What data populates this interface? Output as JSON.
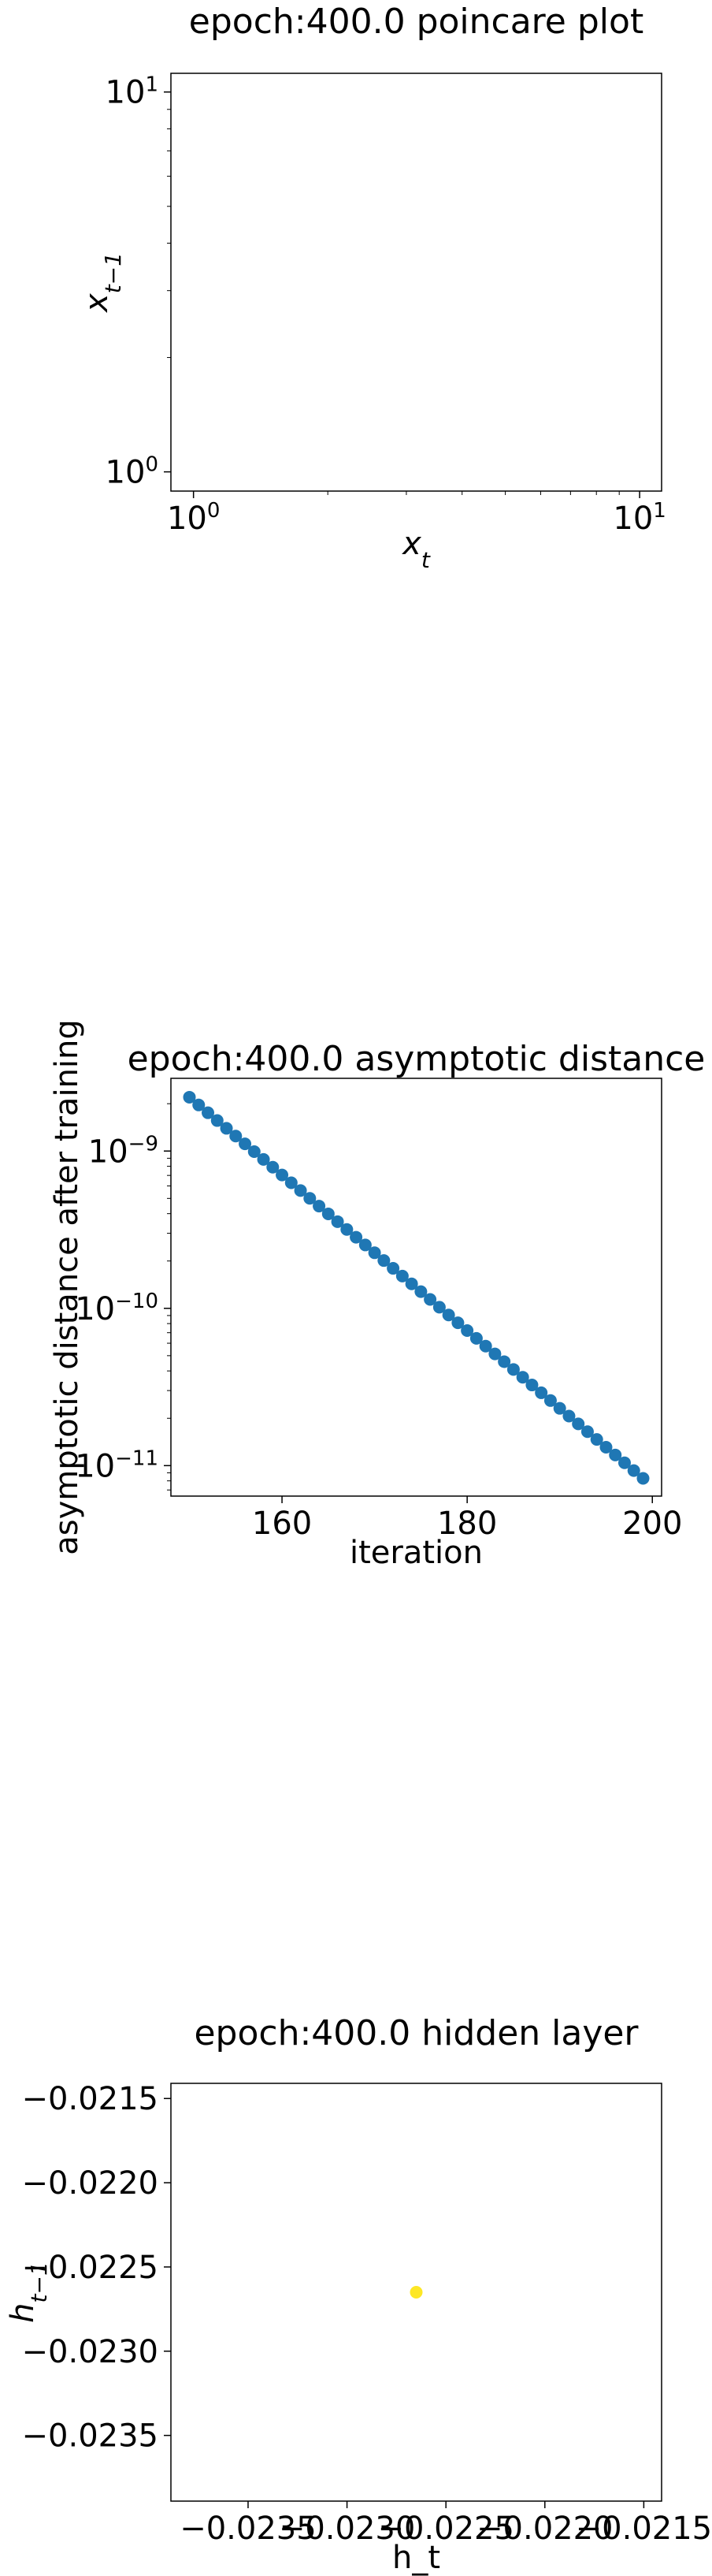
{
  "chart_data": [
    {
      "type": "scatter",
      "title": "epoch:400.0 poincare plot",
      "xlabel": "x_t",
      "ylabel": "x_{t-1}",
      "xscale": "log",
      "yscale": "log",
      "xlim": [
        0.89,
        11.2
      ],
      "ylim": [
        0.89,
        11.2
      ],
      "xticks": [
        {
          "value": 1,
          "base": "10",
          "exp": "0"
        },
        {
          "value": 10,
          "base": "10",
          "exp": "1"
        }
      ],
      "yticks": [
        {
          "value": 1,
          "base": "10",
          "exp": "0"
        },
        {
          "value": 10,
          "base": "10",
          "exp": "1"
        }
      ],
      "grid": false,
      "series": [
        {
          "points": []
        }
      ]
    },
    {
      "type": "scatter",
      "title": "epoch:400.0 asymptotic distance",
      "xlabel": "iteration",
      "ylabel": "asymptotic distance after training",
      "xscale": "linear",
      "yscale": "log",
      "xlim": [
        148,
        201
      ],
      "ylim": [
        6.4e-12,
        2.9e-09
      ],
      "xticks": [
        {
          "value": 160,
          "label": "160"
        },
        {
          "value": 180,
          "label": "180"
        },
        {
          "value": 200,
          "label": "200"
        }
      ],
      "yticks": [
        {
          "value": 1e-09,
          "base": "10",
          "exp": "−9"
        },
        {
          "value": 1e-10,
          "base": "10",
          "exp": "−10"
        },
        {
          "value": 1e-11,
          "base": "10",
          "exp": "−11"
        }
      ],
      "grid": false,
      "color": "#1f77b4",
      "series": [
        {
          "x_start": 150,
          "x_end": 199,
          "y_start": 2.2e-09,
          "y_end": 8.3e-12
        }
      ]
    },
    {
      "type": "scatter",
      "title": "epoch:400.0 hidden layer",
      "xlabel": "h_t",
      "ylabel": "h_{t-1}",
      "xscale": "linear",
      "yscale": "linear",
      "xlim": [
        -0.02389,
        -0.02141
      ],
      "ylim": [
        -0.02389,
        -0.02141
      ],
      "xticks": [
        {
          "value": -0.0235,
          "label": "−0.0235"
        },
        {
          "value": -0.023,
          "label": "−0.0230"
        },
        {
          "value": -0.0225,
          "label": "−0.0225"
        },
        {
          "value": -0.022,
          "label": "−0.0220"
        },
        {
          "value": -0.0215,
          "label": "−0.0215"
        }
      ],
      "yticks": [
        {
          "value": -0.0215,
          "label": "−0.0215"
        },
        {
          "value": -0.022,
          "label": "−0.0220"
        },
        {
          "value": -0.0225,
          "label": "−0.0225"
        },
        {
          "value": -0.023,
          "label": "−0.0230"
        },
        {
          "value": -0.0235,
          "label": "−0.0235"
        }
      ],
      "grid": false,
      "color": "#fde725",
      "series": [
        {
          "points": [
            [
              -0.02265,
              -0.02265
            ]
          ]
        }
      ]
    }
  ]
}
